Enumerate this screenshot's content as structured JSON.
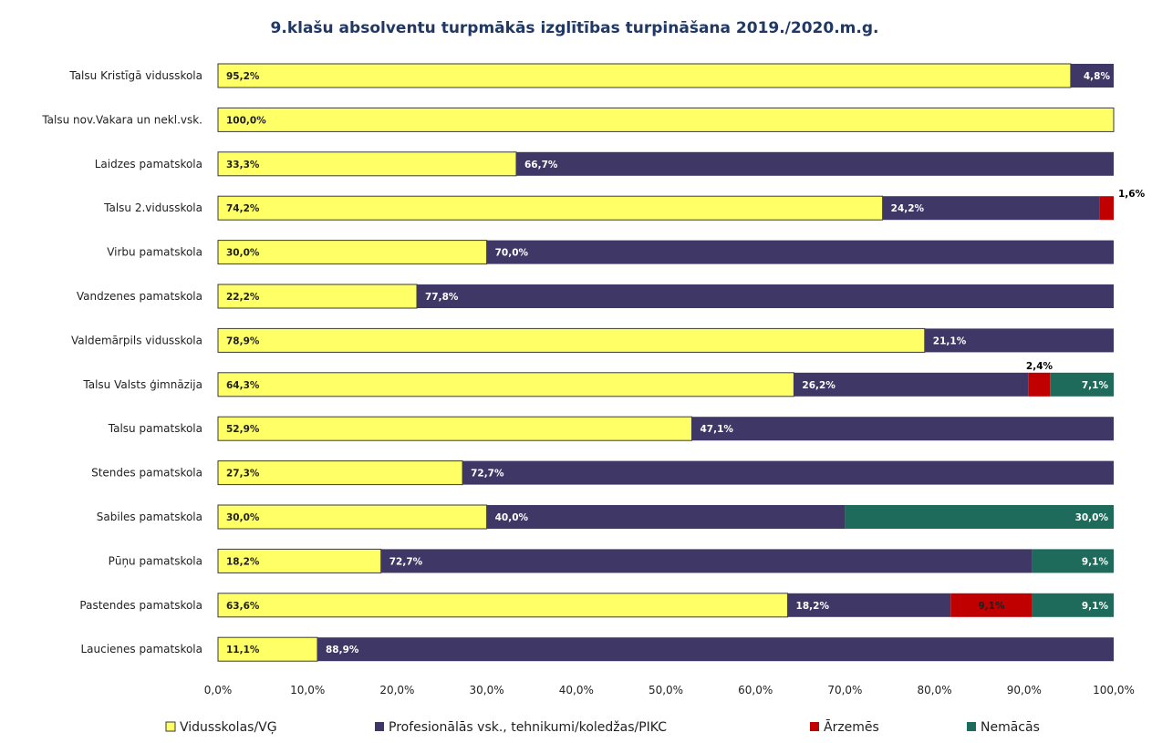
{
  "chart_data": {
    "type": "bar",
    "orientation": "horizontal",
    "stacked": true,
    "title": "9.klašu absolventu turpmākās izglītības turpināšana 2019./2020.m.g.",
    "categories": [
      "Talsu Kristīgā vidusskola",
      "Talsu nov.Vakara un nekl.vsk.",
      "Laidzes pamatskola",
      "Talsu 2.vidusskola",
      "Virbu pamatskola",
      "Vandzenes pamatskola",
      "Valdemārpils vidusskola",
      "Talsu Valsts ģimnāzija",
      "Talsu pamatskola",
      "Stendes pamatskola",
      "Sabiles pamatskola",
      "Pūņu pamatskola",
      "Pastendes pamatskola",
      "Laucienes pamatskola"
    ],
    "series": [
      {
        "name": "Vidusskolas/VĢ",
        "color": "#ffff66",
        "values": [
          95.2,
          100.0,
          33.3,
          74.2,
          30.0,
          22.2,
          78.9,
          64.3,
          52.9,
          27.3,
          30.0,
          18.2,
          63.6,
          11.1
        ],
        "labels": [
          "95,2%",
          "100,0%",
          "33,3%",
          "74,2%",
          "30,0%",
          "22,2%",
          "78,9%",
          "64,3%",
          "52,9%",
          "27,3%",
          "30,0%",
          "18,2%",
          "63,6%",
          "11,1%"
        ]
      },
      {
        "name": "Profesionālās vsk., tehnikumi/koledžas/PIKC",
        "color": "#3f3866",
        "values": [
          4.8,
          0,
          66.7,
          24.2,
          70.0,
          77.8,
          21.1,
          26.2,
          47.1,
          72.7,
          40.0,
          72.7,
          18.2,
          88.9
        ],
        "labels": [
          "4,8%",
          "",
          "66,7%",
          "24,2%",
          "70,0%",
          "77,8%",
          "21,1%",
          "26,2%",
          "47,1%",
          "72,7%",
          "40,0%",
          "72,7%",
          "18,2%",
          "88,9%"
        ]
      },
      {
        "name": "Ārzemēs",
        "color": "#c00000",
        "values": [
          0,
          0,
          0,
          1.6,
          0,
          0,
          0,
          2.4,
          0,
          0,
          0,
          0,
          9.1,
          0
        ],
        "labels": [
          "",
          "",
          "",
          "1,6%",
          "",
          "",
          "",
          "2,4%",
          "",
          "",
          "",
          "",
          "9,1%",
          ""
        ]
      },
      {
        "name": "Nemācās",
        "color": "#1e6b5c",
        "values": [
          0,
          0,
          0,
          0,
          0,
          0,
          0,
          7.1,
          0,
          0,
          30.0,
          9.1,
          9.1,
          0
        ],
        "labels": [
          "",
          "",
          "",
          "",
          "",
          "",
          "",
          "7,1%",
          "",
          "",
          "30,0%",
          "9,1%",
          "9,1%",
          ""
        ]
      }
    ],
    "xlim": [
      0,
      100
    ],
    "xticks": [
      "0,0%",
      "10,0%",
      "20,0%",
      "30,0%",
      "40,0%",
      "50,0%",
      "60,0%",
      "70,0%",
      "80,0%",
      "90,0%",
      "100,0%"
    ],
    "grid": false,
    "legend_position": "bottom"
  }
}
